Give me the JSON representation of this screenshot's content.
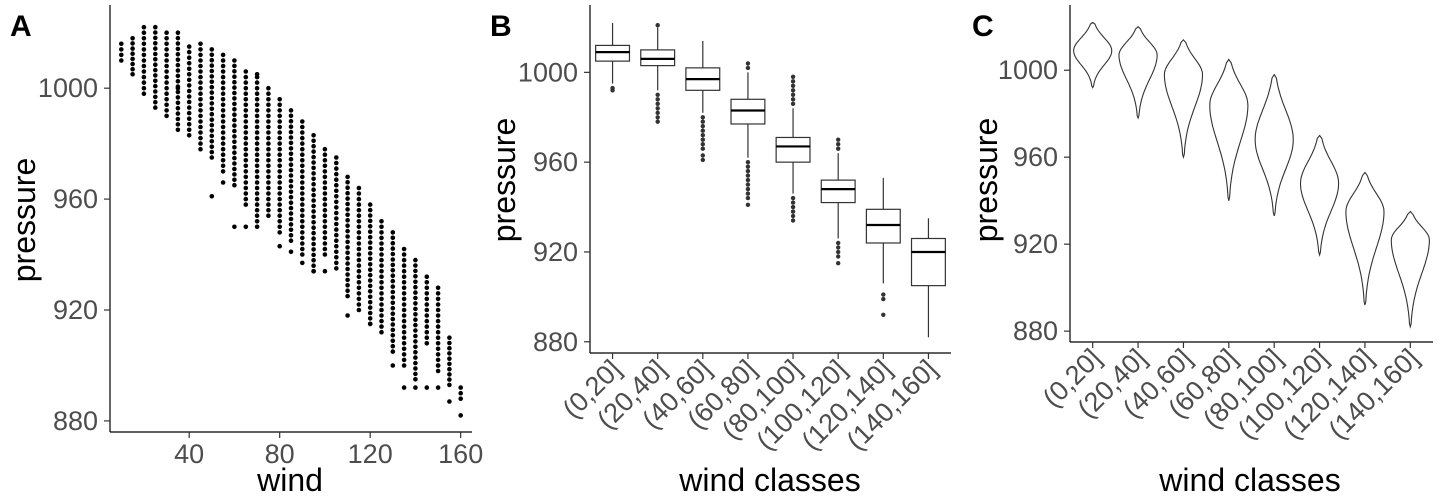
{
  "chart_data": [
    {
      "panel": "A",
      "type": "scatter",
      "xlabel": "wind",
      "ylabel": "pressure",
      "xlim": [
        5,
        165
      ],
      "ylim": [
        876,
        1030
      ],
      "xticks": [
        40,
        80,
        120,
        160
      ],
      "yticks": [
        880,
        920,
        960,
        1000
      ],
      "grid": false,
      "point_color": "#000000",
      "columns": [
        {
          "x": 10,
          "ymin": 1010,
          "ymax": 1016
        },
        {
          "x": 15,
          "ymin": 1005,
          "ymax": 1018
        },
        {
          "x": 20,
          "ymin": 998,
          "ymax": 1022
        },
        {
          "x": 25,
          "ymin": 993,
          "ymax": 1022
        },
        {
          "x": 30,
          "ymin": 990,
          "ymax": 1020
        },
        {
          "x": 35,
          "ymin": 985,
          "ymax": 1020
        },
        {
          "x": 40,
          "ymin": 983,
          "ymax": 1015
        },
        {
          "x": 45,
          "ymin": 978,
          "ymax": 1016
        },
        {
          "x": 50,
          "ymin": 975,
          "ymax": 1014
        },
        {
          "x": 55,
          "ymin": 970,
          "ymax": 1012
        },
        {
          "x": 60,
          "ymin": 965,
          "ymax": 1010
        },
        {
          "x": 65,
          "ymin": 958,
          "ymax": 1006
        },
        {
          "x": 70,
          "ymin": 950,
          "ymax": 1004
        },
        {
          "x": 75,
          "ymin": 954,
          "ymax": 1000
        },
        {
          "x": 80,
          "ymin": 948,
          "ymax": 996
        },
        {
          "x": 85,
          "ymin": 945,
          "ymax": 992
        },
        {
          "x": 90,
          "ymin": 940,
          "ymax": 988
        },
        {
          "x": 95,
          "ymin": 934,
          "ymax": 983
        },
        {
          "x": 100,
          "ymin": 940,
          "ymax": 978
        },
        {
          "x": 105,
          "ymin": 935,
          "ymax": 975
        },
        {
          "x": 110,
          "ymin": 925,
          "ymax": 968
        },
        {
          "x": 115,
          "ymin": 920,
          "ymax": 964
        },
        {
          "x": 120,
          "ymin": 915,
          "ymax": 958
        },
        {
          "x": 125,
          "ymin": 912,
          "ymax": 952
        },
        {
          "x": 130,
          "ymin": 905,
          "ymax": 948
        },
        {
          "x": 135,
          "ymin": 900,
          "ymax": 942
        },
        {
          "x": 140,
          "ymin": 895,
          "ymax": 938
        },
        {
          "x": 145,
          "ymin": 908,
          "ymax": 932
        },
        {
          "x": 150,
          "ymin": 898,
          "ymax": 928
        },
        {
          "x": 155,
          "ymin": 893,
          "ymax": 910
        },
        {
          "x": 160,
          "ymin": 890,
          "ymax": 892
        }
      ],
      "outliers": [
        [
          35,
          1000
        ],
        [
          50,
          961
        ],
        [
          55,
          966
        ],
        [
          60,
          950
        ],
        [
          65,
          950
        ],
        [
          70,
          1005
        ],
        [
          80,
          943
        ],
        [
          85,
          941
        ],
        [
          90,
          937
        ],
        [
          95,
          934
        ],
        [
          100,
          934
        ],
        [
          110,
          918
        ],
        [
          120,
          915
        ],
        [
          130,
          900
        ],
        [
          135,
          892
        ],
        [
          140,
          892
        ],
        [
          145,
          892
        ],
        [
          150,
          892
        ],
        [
          150,
          900
        ],
        [
          155,
          887
        ],
        [
          160,
          888
        ],
        [
          160,
          882
        ]
      ]
    },
    {
      "panel": "B",
      "type": "box",
      "xlabel": "wind classes",
      "ylabel": "pressure",
      "ylim": [
        875,
        1030
      ],
      "yticks": [
        880,
        920,
        960,
        1000
      ],
      "grid": false,
      "categories": [
        "(0,20]",
        "(20,40]",
        "(40,60]",
        "(60,80]",
        "(80,100]",
        "(100,120]",
        "(120,140]",
        "(140,160]"
      ],
      "boxes": [
        {
          "lower_whisker": 995,
          "q1": 1005,
          "median": 1009,
          "q3": 1012,
          "upper_whisker": 1022,
          "outliers": [
            993,
            992
          ]
        },
        {
          "lower_whisker": 992,
          "q1": 1003,
          "median": 1006,
          "q3": 1010,
          "upper_whisker": 1020,
          "outliers": [
            990,
            988,
            986,
            984,
            982,
            980,
            978,
            1021
          ]
        },
        {
          "lower_whisker": 982,
          "q1": 992,
          "median": 997,
          "q3": 1002,
          "upper_whisker": 1014,
          "outliers": [
            980,
            978,
            976,
            974,
            972,
            970,
            968,
            966,
            963,
            961
          ]
        },
        {
          "lower_whisker": 962,
          "q1": 977,
          "median": 983,
          "q3": 988,
          "upper_whisker": 1000,
          "outliers": [
            960,
            958,
            956,
            954,
            952,
            950,
            948,
            946,
            944,
            941,
            1002,
            1004
          ]
        },
        {
          "lower_whisker": 946,
          "q1": 960,
          "median": 967,
          "q3": 971,
          "upper_whisker": 984,
          "outliers": [
            944,
            942,
            940,
            938,
            936,
            934,
            986,
            988,
            990,
            992,
            994,
            996,
            998
          ]
        },
        {
          "lower_whisker": 926,
          "q1": 942,
          "median": 948,
          "q3": 952,
          "upper_whisker": 964,
          "outliers": [
            924,
            922,
            920,
            918,
            915,
            966,
            968,
            970
          ]
        },
        {
          "lower_whisker": 906,
          "q1": 924,
          "median": 932,
          "q3": 939,
          "upper_whisker": 953,
          "outliers": [
            901,
            899,
            892
          ]
        },
        {
          "lower_whisker": 882,
          "q1": 905,
          "median": 920,
          "q3": 926,
          "upper_whisker": 935,
          "outliers": []
        }
      ]
    },
    {
      "panel": "C",
      "type": "violin",
      "xlabel": "wind classes",
      "ylabel": "pressure",
      "ylim": [
        875,
        1030
      ],
      "yticks": [
        880,
        920,
        960,
        1000
      ],
      "grid": false,
      "categories": [
        "(0,20]",
        "(20,40]",
        "(40,60]",
        "(60,80]",
        "(80,100]",
        "(100,120]",
        "(120,140]",
        "(140,160]"
      ],
      "violins": [
        {
          "min": 992,
          "max": 1022,
          "center": 1009
        },
        {
          "min": 978,
          "max": 1020,
          "center": 1007
        },
        {
          "min": 960,
          "max": 1014,
          "center": 998
        },
        {
          "min": 940,
          "max": 1005,
          "center": 984
        },
        {
          "min": 933,
          "max": 998,
          "center": 968
        },
        {
          "min": 915,
          "max": 970,
          "center": 948
        },
        {
          "min": 892,
          "max": 953,
          "center": 935
        },
        {
          "min": 882,
          "max": 935,
          "center": 922
        }
      ]
    }
  ]
}
